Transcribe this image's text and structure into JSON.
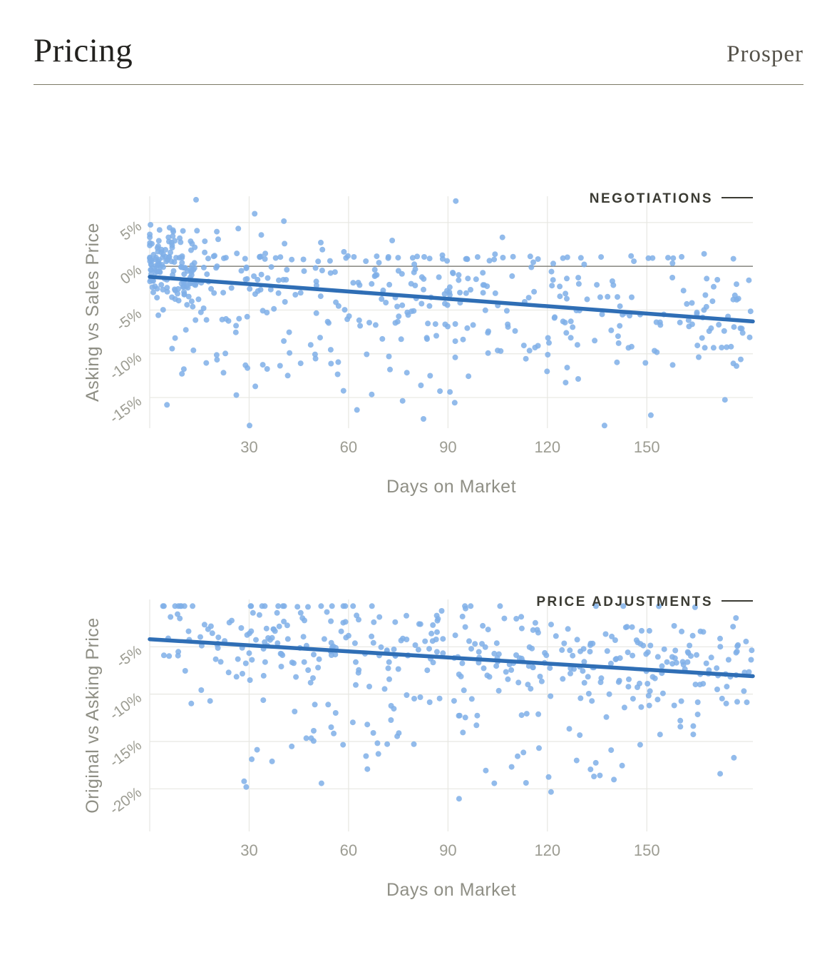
{
  "page": {
    "title": "Pricing",
    "brand": "Prosper"
  },
  "colors": {
    "dot": "#7FAFE8",
    "trend": "#2F6EB5",
    "grid": "#E7E7E2",
    "zero_line": "#6F6F68",
    "tick_text": "#9C9C92",
    "axis_label": "#8F8F85",
    "chart_title": "#3B3B33",
    "rule": "#7C7966"
  },
  "chart_data": [
    {
      "type": "scatter",
      "title": "NEGOTIATIONS",
      "xlabel": "Days on Market",
      "ylabel": "Asking vs Sales Price",
      "xlim": [
        0,
        182
      ],
      "ylim": [
        8,
        -18.5
      ],
      "x_ticks": [
        30,
        60,
        90,
        120,
        150
      ],
      "y_ticks": [
        5,
        0,
        -5,
        -10,
        -15
      ],
      "zero_line": 0,
      "trend": {
        "x0": 0,
        "y0": -1.2,
        "x1": 182,
        "y1": -6.3
      },
      "seed": 1337,
      "y_clamp": [
        -18.2,
        7.6
      ],
      "clusters": [
        {
          "n": 45,
          "x": [
            0,
            182
          ],
          "x_bias": 1.0,
          "y_mode": "const",
          "y_center": 1.0,
          "y_sd": 0.18
        },
        {
          "n": 120,
          "x": [
            0,
            14
          ],
          "x_bias": 1.7,
          "y_mode": "const",
          "y_center": -0.3,
          "y_sd": 2.4
        },
        {
          "n": 300,
          "x": [
            2,
            182
          ],
          "x_bias": 1.0,
          "y_mode": "trend",
          "y_offset": 0.3,
          "y_sd": 3.1
        },
        {
          "n": 70,
          "x": [
            5,
            182
          ],
          "x_bias": 1.0,
          "y_mode": "const",
          "y_center": -11.5,
          "y_sd": 2.9
        }
      ]
    },
    {
      "type": "scatter",
      "title": "PRICE ADJUSTMENTS",
      "xlabel": "Days on Market",
      "ylabel": "Original vs Asking Price",
      "xlim": [
        0,
        182
      ],
      "ylim": [
        0,
        -24.5
      ],
      "x_ticks": [
        30,
        60,
        90,
        120,
        150
      ],
      "y_ticks": [
        -5,
        -10,
        -15,
        -20
      ],
      "zero_line": null,
      "trend": {
        "x0": 0,
        "y0": -4.2,
        "x1": 182,
        "y1": -8.1
      },
      "seed": 2024,
      "y_clamp": [
        -23.5,
        -0.7
      ],
      "clusters": [
        {
          "n": 360,
          "x": [
            3,
            182
          ],
          "x_bias": 0.95,
          "y_mode": "trend",
          "y_offset": 1.1,
          "y_sd": 2.6
        },
        {
          "n": 95,
          "x": [
            25,
            182
          ],
          "x_bias": 0.9,
          "y_mode": "const",
          "y_center": -13.5,
          "y_sd": 3.2
        }
      ]
    }
  ]
}
